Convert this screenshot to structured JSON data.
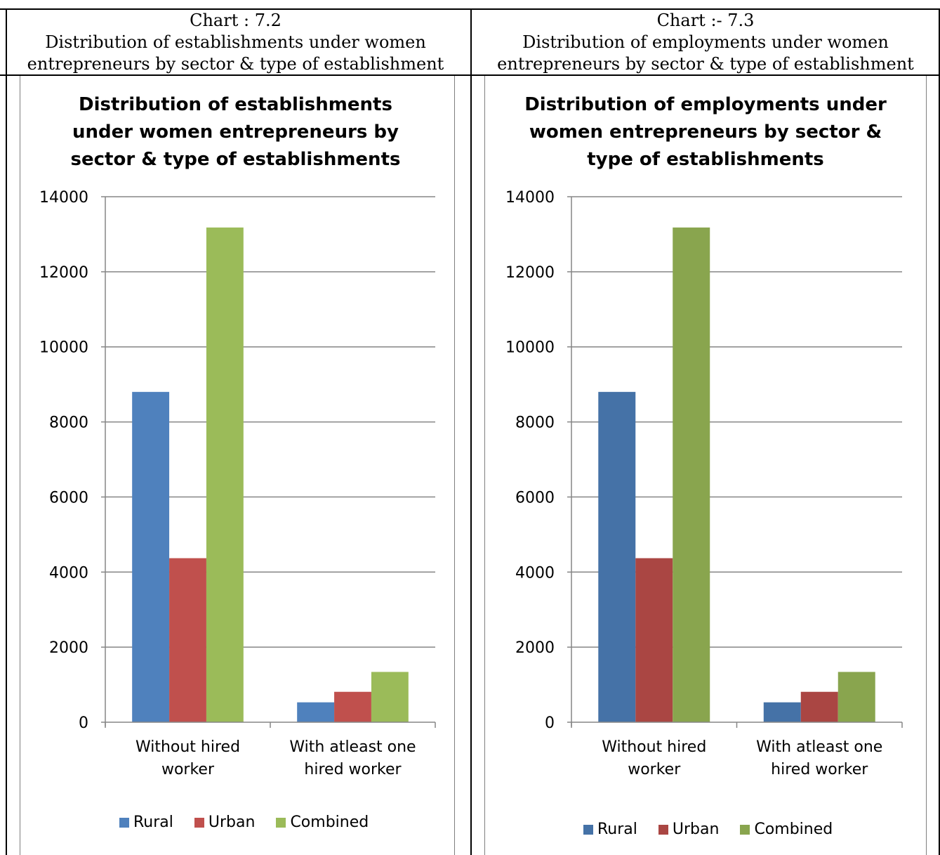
{
  "charts": [
    {
      "header": [
        "Chart : 7.2",
        "Distribution of establishments under women",
        "entrepreneurs by sector & type of establishment"
      ],
      "title_lines": [
        "Distribution of  establishments",
        "under women entrepreneurs by",
        "sector & type of establishments"
      ]
    },
    {
      "header": [
        "Chart :- 7.3",
        "Distribution of employments under women",
        "entrepreneurs by sector & type of establishment"
      ],
      "title_lines": [
        "Distribution of  employments under",
        "women entrepreneurs by sector &",
        "type of establishments"
      ]
    }
  ],
  "chart_data": [
    {
      "type": "bar",
      "title": "Distribution of establishments under women entrepreneurs by sector & type of establishments",
      "categories": [
        "Without hired worker",
        "With atleast one hired worker"
      ],
      "category_lines": [
        [
          "Without hired",
          "worker"
        ],
        [
          "With atleast one",
          "hired worker"
        ]
      ],
      "series": [
        {
          "name": "Rural",
          "values": [
            8800,
            530
          ],
          "color": "#4f81bd"
        },
        {
          "name": "Urban",
          "values": [
            4370,
            810
          ],
          "color": "#c0504d"
        },
        {
          "name": "Combined",
          "values": [
            13180,
            1340
          ],
          "color": "#9bbb59"
        }
      ],
      "ylim": [
        0,
        14000
      ],
      "yticks": [
        "0",
        "2000",
        "4000",
        "6000",
        "8000",
        "10000",
        "12000",
        "14000"
      ],
      "grid": true,
      "legend": "bottom"
    },
    {
      "type": "bar",
      "title": "Distribution of employments under women entrepreneurs by sector & type of establishments",
      "categories": [
        "Without hired worker",
        "With atleast one hired worker"
      ],
      "category_lines": [
        [
          "Without hired",
          "worker"
        ],
        [
          "With atleast one",
          "hired worker"
        ]
      ],
      "series": [
        {
          "name": "Rural",
          "values": [
            8800,
            530
          ],
          "color": "#4572a7"
        },
        {
          "name": "Urban",
          "values": [
            4370,
            810
          ],
          "color": "#aa4643"
        },
        {
          "name": "Combined",
          "values": [
            13180,
            1340
          ],
          "color": "#89a54e"
        }
      ],
      "ylim": [
        0,
        14000
      ],
      "yticks": [
        "0",
        "2000",
        "4000",
        "6000",
        "8000",
        "10000",
        "12000",
        "14000"
      ],
      "grid": true,
      "legend": "bottom"
    }
  ]
}
